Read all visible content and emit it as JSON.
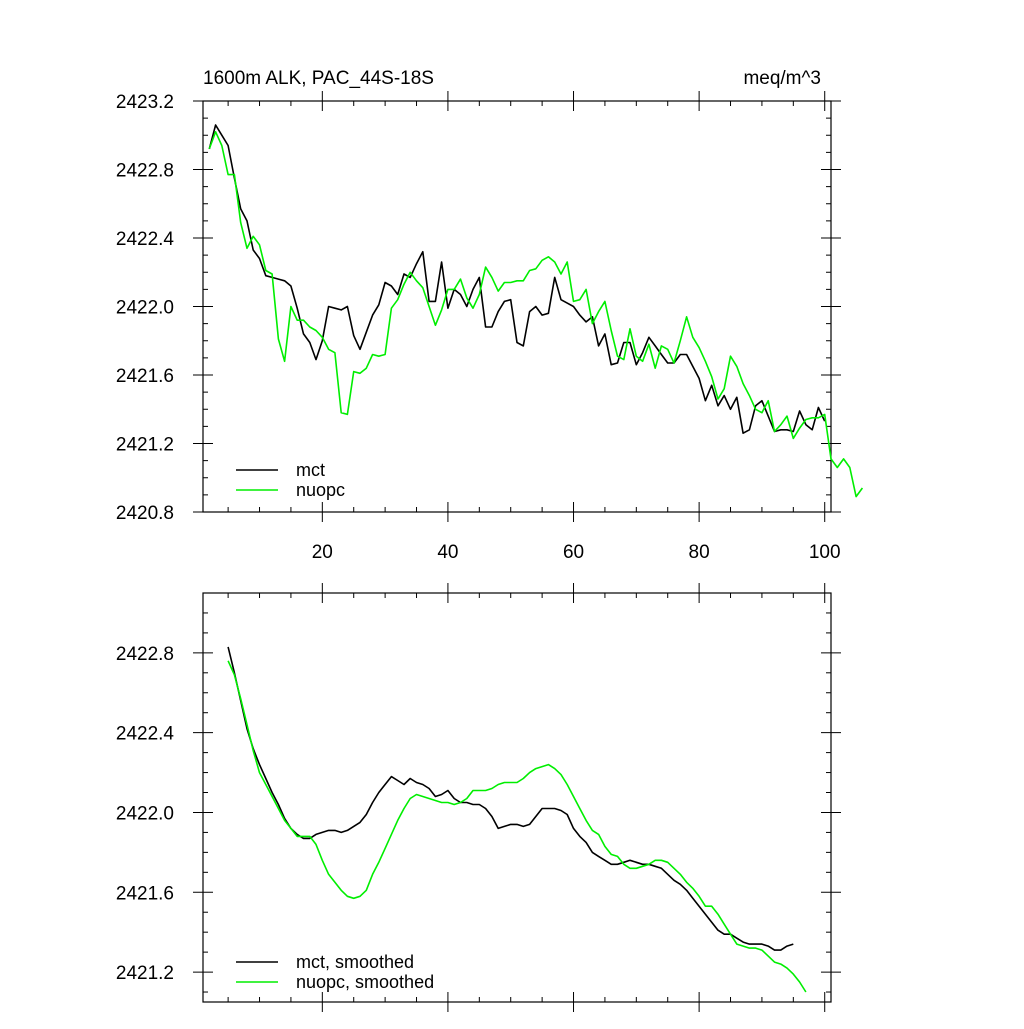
{
  "chart_data": [
    {
      "type": "line",
      "title_left": "1600m ALK, PAC_44S-18S",
      "title_right": "meq/m^3",
      "xlabel": "",
      "ylabel": "",
      "xlim": [
        1,
        101
      ],
      "ylim": [
        2420.8,
        2423.2
      ],
      "x_ticks": [
        20,
        40,
        60,
        80,
        100
      ],
      "x_tick_labels": [
        "20",
        "40",
        "60",
        "80",
        "100"
      ],
      "y_ticks": [
        2420.8,
        2421.2,
        2421.6,
        2422.0,
        2422.4,
        2422.8,
        2423.2
      ],
      "y_tick_labels": [
        "2420.8",
        "2421.2",
        "2421.6",
        "2422.0",
        "2422.4",
        "2422.8",
        "2423.2"
      ],
      "legend_position": "bottom-left",
      "series": [
        {
          "name": "mct",
          "color": "#000000",
          "x_start": 2,
          "values": [
            2422.92,
            2423.06,
            2423.0,
            2422.94,
            2422.75,
            2422.57,
            2422.5,
            2422.33,
            2422.28,
            2422.18,
            2422.17,
            2422.16,
            2422.15,
            2422.12,
            2421.99,
            2421.84,
            2421.79,
            2421.69,
            2421.8,
            2422.0,
            2421.99,
            2421.98,
            2422.0,
            2421.83,
            2421.75,
            2421.85,
            2421.95,
            2422.01,
            2422.14,
            2422.12,
            2422.07,
            2422.19,
            2422.17,
            2422.25,
            2422.32,
            2422.03,
            2422.03,
            2422.26,
            2421.99,
            2422.1,
            2422.07,
            2422.0,
            2422.1,
            2422.17,
            2421.88,
            2421.88,
            2421.97,
            2422.03,
            2422.04,
            2421.79,
            2421.77,
            2421.97,
            2422.0,
            2421.95,
            2421.96,
            2422.17,
            2422.04,
            2422.02,
            2422.0,
            2421.95,
            2421.91,
            2421.94,
            2421.77,
            2421.84,
            2421.66,
            2421.67,
            2421.79,
            2421.79,
            2421.66,
            2421.73,
            2421.82,
            2421.77,
            2421.72,
            2421.67,
            2421.67,
            2421.72,
            2421.72,
            2421.65,
            2421.58,
            2421.45,
            2421.54,
            2421.42,
            2421.48,
            2421.4,
            2421.47,
            2421.26,
            2421.28,
            2421.42,
            2421.45,
            2421.36,
            2421.27,
            2421.28,
            2421.28,
            2421.27,
            2421.39,
            2421.31,
            2421.28,
            2421.41,
            2421.33
          ]
        },
        {
          "name": "nuopc",
          "color": "#00ee00",
          "x_start": 2,
          "values": [
            2422.92,
            2423.02,
            2422.94,
            2422.77,
            2422.77,
            2422.49,
            2422.34,
            2422.41,
            2422.36,
            2422.21,
            2422.19,
            2421.81,
            2421.68,
            2422.0,
            2421.92,
            2421.92,
            2421.88,
            2421.86,
            2421.82,
            2421.75,
            2421.73,
            2421.38,
            2421.37,
            2421.62,
            2421.61,
            2421.64,
            2421.72,
            2421.71,
            2421.72,
            2421.99,
            2422.04,
            2422.13,
            2422.2,
            2422.15,
            2422.11,
            2422.0,
            2421.89,
            2421.98,
            2422.1,
            2422.1,
            2422.16,
            2422.05,
            2421.99,
            2422.07,
            2422.23,
            2422.17,
            2422.09,
            2422.14,
            2422.14,
            2422.15,
            2422.15,
            2422.21,
            2422.22,
            2422.27,
            2422.29,
            2422.26,
            2422.19,
            2422.26,
            2422.03,
            2422.04,
            2422.1,
            2421.9,
            2421.97,
            2422.03,
            2421.86,
            2421.71,
            2421.69,
            2421.87,
            2421.71,
            2421.68,
            2421.78,
            2421.64,
            2421.77,
            2421.75,
            2421.67,
            2421.8,
            2421.94,
            2421.82,
            2421.76,
            2421.68,
            2421.59,
            2421.46,
            2421.52,
            2421.71,
            2421.65,
            2421.55,
            2421.48,
            2421.4,
            2421.38,
            2421.45,
            2421.27,
            2421.31,
            2421.36,
            2421.23,
            2421.29,
            2421.34,
            2421.35,
            2421.35,
            2421.37,
            2421.11,
            2421.06,
            2421.11,
            2421.06,
            2420.89,
            2420.94
          ]
        }
      ]
    },
    {
      "type": "line",
      "title_left": "",
      "title_right": "",
      "xlabel": "",
      "ylabel": "",
      "xlim": [
        1,
        101
      ],
      "ylim": [
        2421.05,
        2423.1
      ],
      "x_ticks": [
        20,
        40,
        60,
        80,
        100
      ],
      "x_tick_labels": [],
      "y_ticks": [
        2421.2,
        2421.6,
        2422.0,
        2422.4,
        2422.8
      ],
      "y_tick_labels": [
        "2421.2",
        "2421.6",
        "2422.0",
        "2422.4",
        "2422.8"
      ],
      "legend_position": "bottom-left",
      "series": [
        {
          "name": "mct, smoothed",
          "color": "#000000",
          "x_start": 5,
          "values": [
            2422.83,
            2422.7,
            2422.56,
            2422.42,
            2422.32,
            2422.24,
            2422.17,
            2422.1,
            2422.04,
            2421.97,
            2421.92,
            2421.89,
            2421.87,
            2421.87,
            2421.89,
            2421.9,
            2421.91,
            2421.91,
            2421.9,
            2421.91,
            2421.93,
            2421.95,
            2421.99,
            2422.05,
            2422.1,
            2422.14,
            2422.18,
            2422.16,
            2422.14,
            2422.17,
            2422.15,
            2422.14,
            2422.12,
            2422.08,
            2422.09,
            2422.11,
            2422.07,
            2422.05,
            2422.05,
            2422.04,
            2422.04,
            2422.02,
            2421.98,
            2421.92,
            2421.93,
            2421.94,
            2421.94,
            2421.93,
            2421.94,
            2421.98,
            2422.02,
            2422.02,
            2422.02,
            2422.01,
            2421.99,
            2421.92,
            2421.88,
            2421.85,
            2421.8,
            2421.78,
            2421.76,
            2421.74,
            2421.74,
            2421.75,
            2421.76,
            2421.75,
            2421.74,
            2421.74,
            2421.73,
            2421.72,
            2421.69,
            2421.66,
            2421.64,
            2421.61,
            2421.57,
            2421.53,
            2421.49,
            2421.45,
            2421.41,
            2421.39,
            2421.39,
            2421.37,
            2421.35,
            2421.34,
            2421.34,
            2421.34,
            2421.33,
            2421.31,
            2421.31,
            2421.33,
            2421.34
          ]
        },
        {
          "name": "nuopc, smoothed",
          "color": "#00ee00",
          "x_start": 5,
          "values": [
            2422.76,
            2422.69,
            2422.57,
            2422.44,
            2422.31,
            2422.2,
            2422.14,
            2422.08,
            2422.02,
            2421.96,
            2421.92,
            2421.88,
            2421.88,
            2421.88,
            2421.84,
            2421.76,
            2421.69,
            2421.65,
            2421.61,
            2421.58,
            2421.57,
            2421.58,
            2421.61,
            2421.69,
            2421.75,
            2421.82,
            2421.89,
            2421.96,
            2422.02,
            2422.07,
            2422.09,
            2422.08,
            2422.07,
            2422.06,
            2422.05,
            2422.05,
            2422.04,
            2422.05,
            2422.07,
            2422.11,
            2422.11,
            2422.11,
            2422.12,
            2422.14,
            2422.15,
            2422.15,
            2422.15,
            2422.17,
            2422.2,
            2422.22,
            2422.23,
            2422.24,
            2422.22,
            2422.19,
            2422.14,
            2422.08,
            2422.02,
            2421.96,
            2421.91,
            2421.89,
            2421.83,
            2421.79,
            2421.78,
            2421.74,
            2421.72,
            2421.72,
            2421.73,
            2421.74,
            2421.76,
            2421.76,
            2421.75,
            2421.72,
            2421.69,
            2421.65,
            2421.62,
            2421.58,
            2421.53,
            2421.53,
            2421.49,
            2421.44,
            2421.39,
            2421.34,
            2421.33,
            2421.32,
            2421.32,
            2421.31,
            2421.28,
            2421.25,
            2421.24,
            2421.22,
            2421.19,
            2421.15,
            2421.1
          ]
        }
      ]
    }
  ]
}
